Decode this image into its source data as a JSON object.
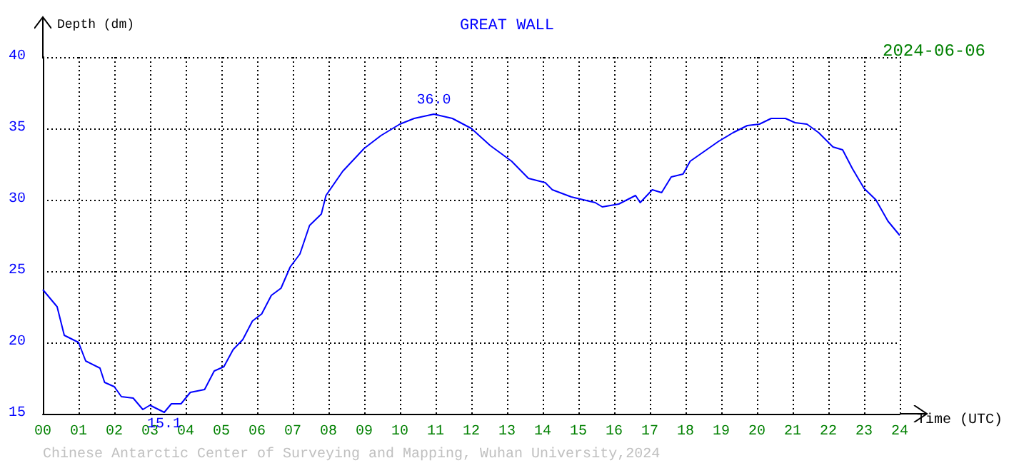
{
  "chart_data": {
    "type": "line",
    "title": "GREAT WALL",
    "xlabel": "Time (UTC)",
    "ylabel": "Depth (dm)",
    "annotations": [
      "2024-06-06",
      "Chinese Antarctic Center of Surveying and Mapping, Wuhan University,2024",
      {
        "text": "36.0",
        "x": 10.95,
        "y": 36.0
      },
      {
        "text": "15.1",
        "x": 3.4,
        "y": 15.1
      }
    ],
    "series": [
      {
        "color": "#0000ff",
        "x": [
          0,
          0.4,
          0.6,
          1.0,
          1.2,
          1.6,
          1.73,
          2.0,
          2.2,
          2.53,
          2.8,
          3.0,
          3.4,
          3.6,
          3.87,
          4.13,
          4.53,
          4.8,
          5.07,
          5.33,
          5.6,
          5.87,
          6.13,
          6.4,
          6.67,
          6.93,
          7.2,
          7.47,
          7.8,
          7.93,
          8.4,
          9.0,
          9.47,
          10.0,
          10.4,
          10.95,
          11.47,
          12.0,
          12.53,
          13.13,
          13.6,
          14.07,
          14.27,
          14.8,
          15.47,
          15.67,
          16.13,
          16.6,
          16.73,
          17.07,
          17.33,
          17.6,
          17.93,
          18.13,
          18.53,
          18.93,
          19.33,
          19.73,
          20.07,
          20.4,
          20.8,
          21.07,
          21.4,
          21.73,
          22.13,
          22.4,
          22.67,
          23.0,
          23.33,
          23.67,
          24.0
        ],
        "values": [
          23.7,
          22.5,
          20.5,
          20.0,
          18.7,
          18.2,
          17.2,
          16.9,
          16.2,
          16.1,
          15.3,
          15.6,
          15.1,
          15.7,
          15.7,
          16.5,
          16.7,
          18.0,
          18.3,
          19.5,
          20.2,
          21.5,
          22.0,
          23.3,
          23.8,
          25.3,
          26.2,
          28.2,
          29.0,
          30.3,
          32.0,
          33.6,
          34.5,
          35.3,
          35.7,
          36.0,
          35.7,
          35.0,
          33.8,
          32.7,
          31.5,
          31.2,
          30.7,
          30.2,
          29.8,
          29.5,
          29.7,
          30.3,
          29.8,
          30.7,
          30.5,
          31.6,
          31.8,
          32.7,
          33.4,
          34.1,
          34.7,
          35.2,
          35.3,
          35.7,
          35.7,
          35.4,
          35.3,
          34.7,
          33.7,
          33.5,
          32.2,
          30.8,
          30.0,
          28.5,
          27.5
        ]
      }
    ],
    "xlim": [
      0,
      24
    ],
    "xticks": [
      {
        "value": 0,
        "label": "00"
      },
      {
        "value": 1,
        "label": "01"
      },
      {
        "value": 2,
        "label": "02"
      },
      {
        "value": 3,
        "label": "03"
      },
      {
        "value": 4,
        "label": "04"
      },
      {
        "value": 5,
        "label": "05"
      },
      {
        "value": 6,
        "label": "06"
      },
      {
        "value": 7,
        "label": "07"
      },
      {
        "value": 8,
        "label": "08"
      },
      {
        "value": 9,
        "label": "09"
      },
      10,
      11,
      12,
      13,
      14,
      15,
      16,
      17,
      18,
      19,
      20,
      21,
      22,
      23,
      24
    ],
    "ylim": [
      15,
      40
    ],
    "yticks": [
      15,
      20,
      25,
      30,
      35,
      40
    ],
    "grid": true,
    "marker": "none",
    "line_style": "solid"
  }
}
